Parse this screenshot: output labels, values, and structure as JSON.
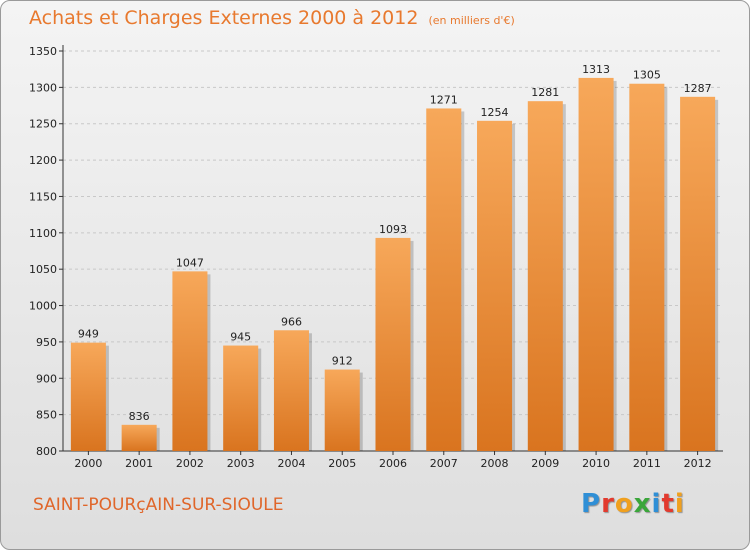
{
  "header": {
    "title": "Achats et Charges Externes 2000 à 2012",
    "subtitle": "(en milliers d'€)"
  },
  "footer": {
    "city": "SAINT-POURçAIN-SUR-SIOULE",
    "logo_letters": [
      {
        "char": "P",
        "color": "#2f8fd6"
      },
      {
        "char": "r",
        "color": "#e23a2e"
      },
      {
        "char": "o",
        "color": "#f0a01e"
      },
      {
        "char": "x",
        "color": "#3aa63a"
      },
      {
        "char": "i",
        "color": "#2f8fd6"
      },
      {
        "char": "t",
        "color": "#e23a2e"
      },
      {
        "char": "i",
        "color": "#f0a01e"
      }
    ]
  },
  "chart_data": {
    "type": "bar",
    "categories": [
      "2000",
      "2001",
      "2002",
      "2003",
      "2004",
      "2005",
      "2006",
      "2007",
      "2008",
      "2009",
      "2010",
      "2011",
      "2012"
    ],
    "values": [
      949,
      836,
      1047,
      945,
      966,
      912,
      1093,
      1271,
      1254,
      1281,
      1313,
      1305,
      1287
    ],
    "ylim": [
      800,
      1350
    ],
    "yticks": [
      800,
      850,
      900,
      950,
      1000,
      1050,
      1100,
      1150,
      1200,
      1250,
      1300,
      1350
    ],
    "grid": true,
    "bar_color_top": "#f7a85a",
    "bar_color_bottom": "#d9741f"
  }
}
